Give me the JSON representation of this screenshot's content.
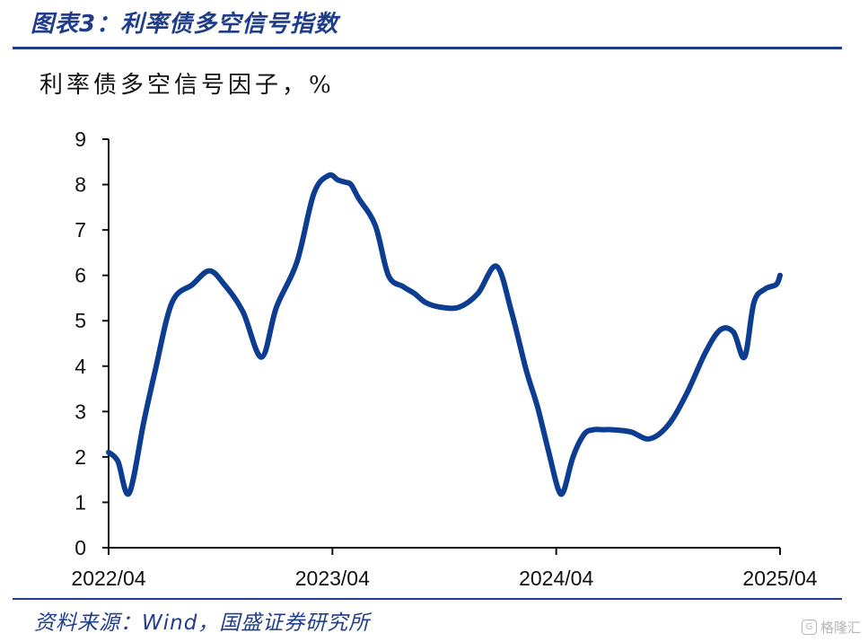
{
  "header": {
    "title": "图表3：利率债多空信号指数",
    "subtitle": "利率债多空信号因子，%"
  },
  "footer": {
    "source": "资料来源：Wind，国盛证券研究所",
    "watermark": "格隆汇"
  },
  "colors": {
    "line": "#0d3d91",
    "title": "#1f3d8a",
    "axis": "#111111"
  },
  "chart_data": {
    "type": "line",
    "x_ticks": [
      "2022/04",
      "2023/04",
      "2024/04",
      "2025/04"
    ],
    "y_ticks": [
      "0",
      "1",
      "2",
      "3",
      "4",
      "5",
      "6",
      "7",
      "8",
      "9"
    ],
    "ylim": [
      0,
      9
    ],
    "xlim": [
      0,
      36
    ],
    "grid": false,
    "series": [
      {
        "x": [
          0,
          0.5,
          1.1,
          1.9,
          2.5,
          3.4,
          4.5,
          5.4,
          6.2,
          7.2,
          8.2,
          9.0,
          10.1,
          11.0,
          11.8,
          12.3,
          12.7,
          13.0,
          13.4,
          14.3,
          15.0,
          15.8,
          16.4,
          17.0,
          17.8,
          18.8,
          19.8,
          20.8,
          21.6,
          22.4,
          23.0,
          23.6,
          24.1,
          24.4,
          24.9,
          25.5,
          26.0,
          26.5,
          27.0,
          28.0,
          29.0,
          30.0,
          31.0,
          32.0,
          32.8,
          33.5,
          34.1,
          34.6,
          35.2,
          35.8,
          36.0
        ],
        "y": [
          2.1,
          1.9,
          1.2,
          2.8,
          3.9,
          5.4,
          5.8,
          6.1,
          5.8,
          5.2,
          4.2,
          5.3,
          6.3,
          7.8,
          8.2,
          8.1,
          8.05,
          8.0,
          7.7,
          7.1,
          6.0,
          5.75,
          5.6,
          5.4,
          5.3,
          5.3,
          5.6,
          6.2,
          5.2,
          3.9,
          3.1,
          2.1,
          1.3,
          1.25,
          2.0,
          2.5,
          2.6,
          2.6,
          2.6,
          2.55,
          2.4,
          2.7,
          3.4,
          4.3,
          4.8,
          4.75,
          4.2,
          5.4,
          5.7,
          5.8,
          6.0
        ]
      }
    ]
  }
}
